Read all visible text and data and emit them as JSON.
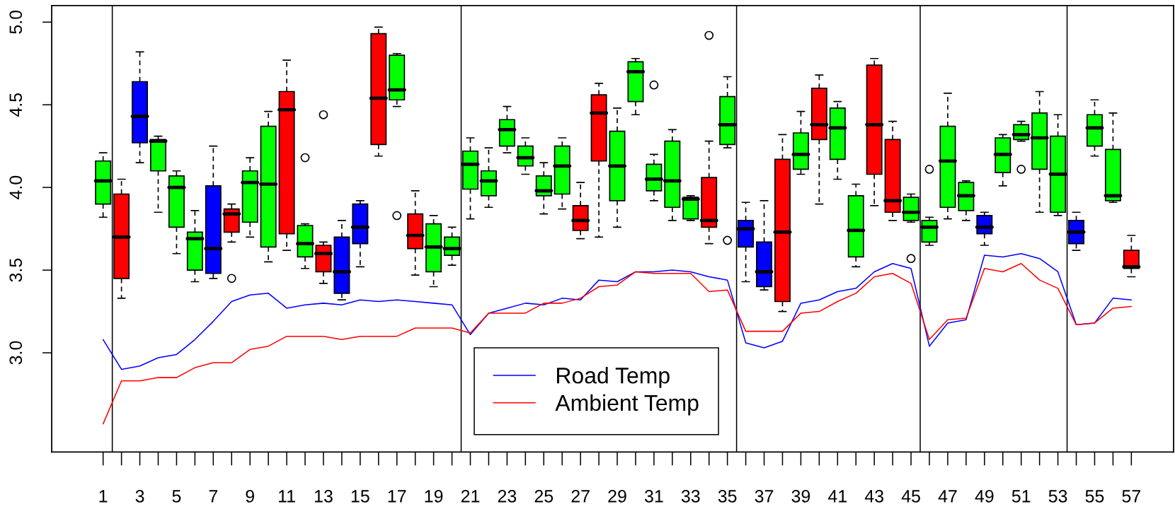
{
  "chart_data": {
    "type": "box",
    "x": [
      1,
      2,
      3,
      4,
      5,
      6,
      7,
      8,
      9,
      10,
      11,
      12,
      13,
      14,
      15,
      16,
      17,
      18,
      19,
      20,
      21,
      22,
      23,
      24,
      25,
      26,
      27,
      28,
      29,
      30,
      31,
      32,
      33,
      34,
      35,
      36,
      37,
      38,
      39,
      40,
      41,
      42,
      43,
      44,
      45,
      46,
      47,
      48,
      49,
      50,
      51,
      52,
      53,
      54,
      55,
      56,
      57
    ],
    "boxes": [
      {
        "low": 3.82,
        "q1": 3.9,
        "median": 4.04,
        "q3": 4.16,
        "high": 4.21
      },
      {
        "low": 3.33,
        "q1": 3.45,
        "median": 3.7,
        "q3": 3.96,
        "high": 4.05
      },
      {
        "low": 4.15,
        "q1": 4.27,
        "median": 4.43,
        "q3": 4.64,
        "high": 4.82
      },
      {
        "low": 3.85,
        "q1": 4.1,
        "median": 4.28,
        "q3": 4.29,
        "high": 4.31
      },
      {
        "low": 3.6,
        "q1": 3.76,
        "median": 4.0,
        "q3": 4.07,
        "high": 4.1
      },
      {
        "low": 3.43,
        "q1": 3.5,
        "median": 3.69,
        "q3": 3.73,
        "high": 3.86
      },
      {
        "low": 3.45,
        "q1": 3.48,
        "median": 3.63,
        "q3": 4.01,
        "high": 4.25
      },
      {
        "low": 3.67,
        "q1": 3.73,
        "median": 3.84,
        "q3": 3.87,
        "high": 3.9,
        "outliers": [
          3.45
        ]
      },
      {
        "low": 3.7,
        "q1": 3.79,
        "median": 4.03,
        "q3": 4.1,
        "high": 4.18
      },
      {
        "low": 3.55,
        "q1": 3.64,
        "median": 4.02,
        "q3": 4.37,
        "high": 4.46
      },
      {
        "low": 3.62,
        "q1": 3.72,
        "median": 4.47,
        "q3": 4.58,
        "high": 4.77
      },
      {
        "low": 3.51,
        "q1": 3.58,
        "median": 3.66,
        "q3": 3.77,
        "high": 3.78,
        "outliers": [
          4.18
        ]
      },
      {
        "low": 3.42,
        "q1": 3.49,
        "median": 3.6,
        "q3": 3.65,
        "high": 3.67,
        "outliers": [
          4.44
        ]
      },
      {
        "low": 3.32,
        "q1": 3.36,
        "median": 3.49,
        "q3": 3.7,
        "high": 3.8
      },
      {
        "low": 3.52,
        "q1": 3.66,
        "median": 3.76,
        "q3": 3.9,
        "high": 3.92
      },
      {
        "low": 4.19,
        "q1": 4.26,
        "median": 4.54,
        "q3": 4.93,
        "high": 4.97
      },
      {
        "low": 4.49,
        "q1": 4.53,
        "median": 4.59,
        "q3": 4.8,
        "high": 4.81,
        "outliers": [
          3.83
        ]
      },
      {
        "low": 3.47,
        "q1": 3.63,
        "median": 3.71,
        "q3": 3.84,
        "high": 3.98
      },
      {
        "low": 3.4,
        "q1": 3.49,
        "median": 3.64,
        "q3": 3.78,
        "high": 3.83
      },
      {
        "low": 3.53,
        "q1": 3.59,
        "median": 3.63,
        "q3": 3.7,
        "high": 3.76
      },
      {
        "low": 3.81,
        "q1": 3.99,
        "median": 4.14,
        "q3": 4.22,
        "high": 4.3
      },
      {
        "low": 3.88,
        "q1": 3.95,
        "median": 4.04,
        "q3": 4.1,
        "high": 4.24
      },
      {
        "low": 4.21,
        "q1": 4.25,
        "median": 4.35,
        "q3": 4.41,
        "high": 4.49
      },
      {
        "low": 4.08,
        "q1": 4.13,
        "median": 4.18,
        "q3": 4.25,
        "high": 4.3
      },
      {
        "low": 3.84,
        "q1": 3.95,
        "median": 3.98,
        "q3": 4.07,
        "high": 4.15
      },
      {
        "low": 3.87,
        "q1": 3.96,
        "median": 4.13,
        "q3": 4.25,
        "high": 4.3
      },
      {
        "low": 3.69,
        "q1": 3.74,
        "median": 3.8,
        "q3": 3.89,
        "high": 4.03
      },
      {
        "low": 3.7,
        "q1": 4.16,
        "median": 4.45,
        "q3": 4.56,
        "high": 4.63
      },
      {
        "low": 3.76,
        "q1": 3.92,
        "median": 4.13,
        "q3": 4.34,
        "high": 4.48
      },
      {
        "low": 4.44,
        "q1": 4.52,
        "median": 4.7,
        "q3": 4.76,
        "high": 4.78
      },
      {
        "low": 3.92,
        "q1": 3.98,
        "median": 4.05,
        "q3": 4.14,
        "high": 4.2,
        "outliers": [
          4.62
        ]
      },
      {
        "low": 3.8,
        "q1": 3.88,
        "median": 4.04,
        "q3": 4.28,
        "high": 4.35
      },
      {
        "low": 3.8,
        "q1": 3.81,
        "median": 3.93,
        "q3": 3.94,
        "high": 3.95
      },
      {
        "low": 3.66,
        "q1": 3.76,
        "median": 3.8,
        "q3": 4.06,
        "high": 4.28,
        "outliers": [
          4.92
        ]
      },
      {
        "low": 4.24,
        "q1": 4.26,
        "median": 4.38,
        "q3": 4.55,
        "high": 4.67,
        "outliers": [
          3.68
        ]
      },
      {
        "low": 3.43,
        "q1": 3.64,
        "median": 3.75,
        "q3": 3.8,
        "high": 3.91
      },
      {
        "low": 3.38,
        "q1": 3.4,
        "median": 3.49,
        "q3": 3.67,
        "high": 3.92
      },
      {
        "low": 3.25,
        "q1": 3.31,
        "median": 3.73,
        "q3": 4.17,
        "high": 4.32
      },
      {
        "low": 4.08,
        "q1": 4.11,
        "median": 4.2,
        "q3": 4.33,
        "high": 4.46
      },
      {
        "low": 3.9,
        "q1": 4.29,
        "median": 4.38,
        "q3": 4.6,
        "high": 4.68
      },
      {
        "low": 4.05,
        "q1": 4.17,
        "median": 4.36,
        "q3": 4.48,
        "high": 4.52
      },
      {
        "low": 3.52,
        "q1": 3.58,
        "median": 3.74,
        "q3": 3.95,
        "high": 4.02
      },
      {
        "low": 3.89,
        "q1": 4.08,
        "median": 4.38,
        "q3": 4.74,
        "high": 4.78
      },
      {
        "low": 3.8,
        "q1": 3.85,
        "median": 3.92,
        "q3": 4.29,
        "high": 4.4
      },
      {
        "low": 3.79,
        "q1": 3.8,
        "median": 3.85,
        "q3": 3.94,
        "high": 3.96,
        "outliers": [
          3.57
        ]
      },
      {
        "low": 3.65,
        "q1": 3.67,
        "median": 3.76,
        "q3": 3.8,
        "high": 3.82,
        "outliers": [
          4.11
        ]
      },
      {
        "low": 3.81,
        "q1": 3.88,
        "median": 4.16,
        "q3": 4.37,
        "high": 4.57
      },
      {
        "low": 3.8,
        "q1": 3.86,
        "median": 3.95,
        "q3": 4.03,
        "high": 4.04
      },
      {
        "low": 3.65,
        "q1": 3.72,
        "median": 3.76,
        "q3": 3.83,
        "high": 3.85
      },
      {
        "low": 4.01,
        "q1": 4.09,
        "median": 4.2,
        "q3": 4.3,
        "high": 4.32
      },
      {
        "low": 4.28,
        "q1": 4.29,
        "median": 4.32,
        "q3": 4.38,
        "high": 4.4,
        "outliers": [
          4.11
        ]
      },
      {
        "low": 3.85,
        "q1": 4.11,
        "median": 4.3,
        "q3": 4.45,
        "high": 4.58
      },
      {
        "low": 3.83,
        "q1": 3.85,
        "median": 4.08,
        "q3": 4.31,
        "high": 4.44
      },
      {
        "low": 3.62,
        "q1": 3.66,
        "median": 3.73,
        "q3": 3.8,
        "high": 3.85
      },
      {
        "low": 4.19,
        "q1": 4.25,
        "median": 4.36,
        "q3": 4.44,
        "high": 4.53
      },
      {
        "low": 3.91,
        "q1": 3.92,
        "median": 3.95,
        "q3": 4.23,
        "high": 4.45
      },
      {
        "low": 3.46,
        "q1": 3.51,
        "median": 3.52,
        "q3": 3.62,
        "high": 3.71
      }
    ],
    "colors": [
      "#00ff00",
      "#ff0000",
      "#0000ff",
      "#00ff00",
      "#00ff00",
      "#00ff00",
      "#0000ff",
      "#ff0000",
      "#00ff00",
      "#00ff00",
      "#ff0000",
      "#00ff00",
      "#ff0000",
      "#0000ff",
      "#0000ff",
      "#ff0000",
      "#00ff00",
      "#ff0000",
      "#00ff00",
      "#00ff00",
      "#00ff00",
      "#00ff00",
      "#00ff00",
      "#00ff00",
      "#00ff00",
      "#00ff00",
      "#ff0000",
      "#ff0000",
      "#00ff00",
      "#00ff00",
      "#00ff00",
      "#00ff00",
      "#00ff00",
      "#ff0000",
      "#00ff00",
      "#0000ff",
      "#0000ff",
      "#ff0000",
      "#00ff00",
      "#ff0000",
      "#00ff00",
      "#00ff00",
      "#ff0000",
      "#ff0000",
      "#00ff00",
      "#00ff00",
      "#00ff00",
      "#00ff00",
      "#0000ff",
      "#00ff00",
      "#00ff00",
      "#00ff00",
      "#00ff00",
      "#0000ff",
      "#00ff00",
      "#00ff00",
      "#ff0000"
    ],
    "series": [
      {
        "name": "Road Temp",
        "type": "line",
        "color": "#0000ff",
        "values": [
          3.08,
          2.9,
          2.92,
          2.97,
          2.99,
          3.08,
          3.19,
          3.31,
          3.35,
          3.36,
          3.27,
          3.29,
          3.3,
          3.29,
          3.32,
          3.31,
          3.32,
          3.31,
          3.3,
          3.29,
          3.11,
          3.24,
          3.27,
          3.3,
          3.29,
          3.33,
          3.32,
          3.44,
          3.43,
          3.49,
          3.49,
          3.5,
          3.49,
          3.46,
          3.44,
          3.06,
          3.03,
          3.07,
          3.3,
          3.32,
          3.37,
          3.39,
          3.49,
          3.54,
          3.51,
          3.04,
          3.18,
          3.2,
          3.59,
          3.58,
          3.6,
          3.57,
          3.49,
          3.17,
          3.18,
          3.33,
          3.32
        ]
      },
      {
        "name": "Ambient Temp",
        "type": "line",
        "color": "#ff0000",
        "values": [
          2.57,
          2.83,
          2.83,
          2.85,
          2.85,
          2.91,
          2.94,
          2.94,
          3.02,
          3.04,
          3.1,
          3.1,
          3.1,
          3.08,
          3.1,
          3.1,
          3.1,
          3.15,
          3.15,
          3.15,
          3.12,
          3.24,
          3.24,
          3.24,
          3.3,
          3.3,
          3.33,
          3.4,
          3.41,
          3.49,
          3.48,
          3.48,
          3.48,
          3.37,
          3.38,
          3.13,
          3.13,
          3.13,
          3.24,
          3.25,
          3.31,
          3.36,
          3.46,
          3.48,
          3.42,
          3.08,
          3.2,
          3.21,
          3.51,
          3.49,
          3.54,
          3.44,
          3.39,
          3.17,
          3.18,
          3.27,
          3.28
        ]
      }
    ],
    "ref_lines": [
      {
        "axis": "x",
        "value": 1.5,
        "color": "#000000"
      },
      {
        "axis": "x",
        "value": 20.5,
        "color": "#000000"
      },
      {
        "axis": "x",
        "value": 35.5,
        "color": "#000000"
      },
      {
        "axis": "x",
        "value": 45.5,
        "color": "#000000"
      },
      {
        "axis": "x",
        "value": 53.5,
        "color": "#000000"
      }
    ],
    "xlim": [
      -1.8,
      59.3
    ],
    "xticks": [
      1,
      3,
      5,
      7,
      9,
      11,
      13,
      15,
      17,
      19,
      21,
      23,
      25,
      27,
      29,
      31,
      33,
      35,
      37,
      39,
      41,
      43,
      45,
      47,
      49,
      51,
      53,
      55,
      57
    ],
    "ylim": [
      2.4,
      5.1
    ],
    "yticks": [
      {
        "value": 3,
        "label": "3.0"
      },
      {
        "value": 3.5,
        "label": "3.5"
      },
      {
        "value": 4,
        "label": "4.0"
      },
      {
        "value": 4.5,
        "label": "4.5"
      },
      {
        "value": 5,
        "label": "5.0"
      }
    ],
    "legend": "bottom"
  }
}
